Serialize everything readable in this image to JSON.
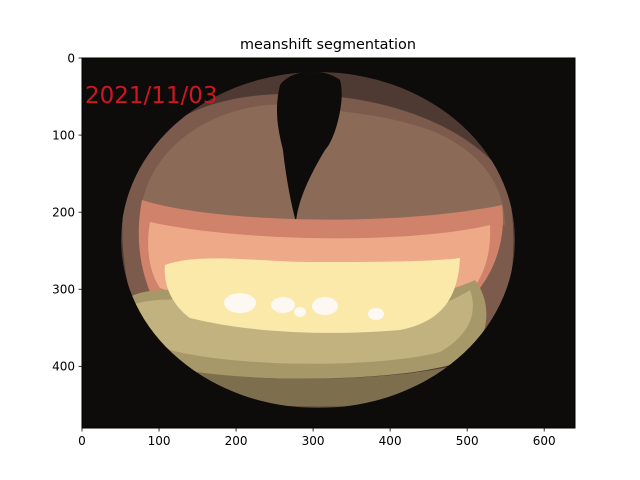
{
  "chart_data": {
    "type": "image",
    "title": "meanshift segmentation",
    "image_width": 640,
    "image_height": 480,
    "xlim": [
      0,
      640
    ],
    "ylim": [
      480,
      0
    ],
    "x_ticks": [
      0,
      100,
      200,
      300,
      400,
      500,
      600
    ],
    "y_ticks": [
      0,
      100,
      200,
      300,
      400
    ],
    "image_text": "2021/11/03",
    "colors": {
      "background": "#0d0c0a",
      "dark_brown": "#4e3a32",
      "brown": "#7c5a4c",
      "tan_brown": "#8c6a58",
      "salmon": "#d0836a",
      "peach": "#eeaa88",
      "light_yellow": "#fae9a8",
      "olive": "#c2b280",
      "khaki": "#a69868",
      "dark_olive": "#7d6e4e",
      "white": "#fdf8f2",
      "stamp": "#d0161f"
    }
  }
}
